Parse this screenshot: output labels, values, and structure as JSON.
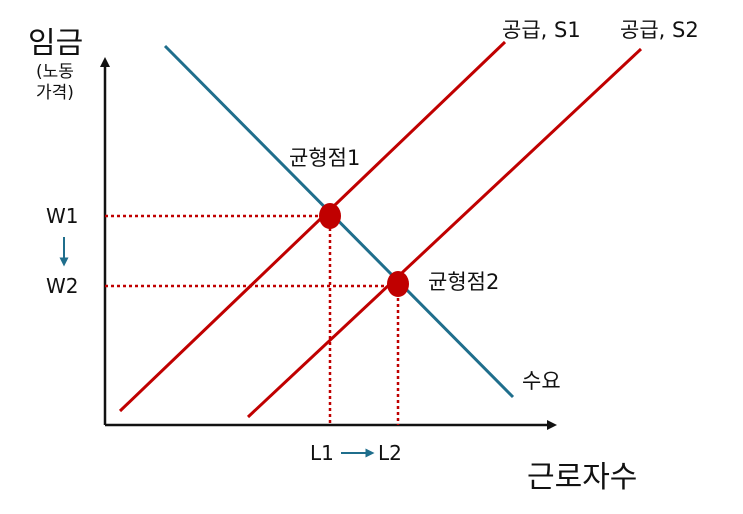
{
  "y_axis": {
    "title": "임금",
    "subtitle_line1": "(노동",
    "subtitle_line2": "가격)"
  },
  "x_axis": {
    "title": "근로자수"
  },
  "curves": {
    "supply1": "공급, S1",
    "supply2": "공급, S2",
    "demand": "수요"
  },
  "points": {
    "eq1": "균형점1",
    "eq2": "균형점2"
  },
  "ticks": {
    "w1": "W1",
    "w2": "W2",
    "l1": "L1",
    "l2": "L2"
  },
  "colors": {
    "supply": "#c00000",
    "demand": "#1f6e8c",
    "point": "#c00000",
    "axis": "#111111",
    "arrow": "#1f6e8c"
  }
}
